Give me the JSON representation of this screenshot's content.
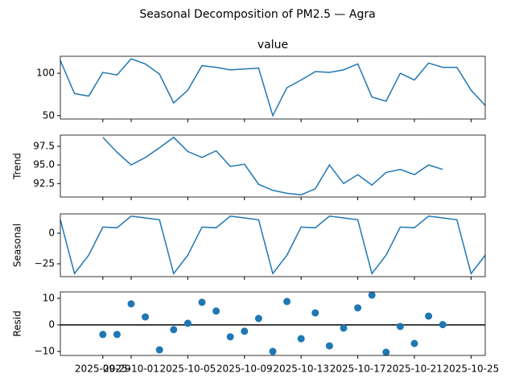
{
  "title": "Seasonal Decomposition of PM2.5 — Agra",
  "chart_data": [
    {
      "type": "line",
      "title": "value",
      "color": "#1f77b4",
      "x": [
        "2025-09-26",
        "2025-09-27",
        "2025-09-28",
        "2025-09-29",
        "2025-09-30",
        "2025-10-01",
        "2025-10-02",
        "2025-10-03",
        "2025-10-04",
        "2025-10-05",
        "2025-10-06",
        "2025-10-07",
        "2025-10-08",
        "2025-10-09",
        "2025-10-10",
        "2025-10-11",
        "2025-10-12",
        "2025-10-13",
        "2025-10-14",
        "2025-10-15",
        "2025-10-16",
        "2025-10-17",
        "2025-10-18",
        "2025-10-19",
        "2025-10-20",
        "2025-10-21",
        "2025-10-22",
        "2025-10-23",
        "2025-10-24",
        "2025-10-25",
        "2025-10-26"
      ],
      "values": [
        115,
        76,
        73,
        101,
        98,
        117,
        111,
        99,
        65,
        80,
        109,
        107,
        104,
        105,
        106,
        50,
        83,
        92,
        102,
        101,
        104,
        111,
        72,
        67,
        100,
        92,
        112,
        107,
        107,
        80,
        62
      ],
      "xlim": [
        "2025-09-26",
        "2025-10-26"
      ],
      "ylim": [
        46,
        120
      ],
      "yticks": [
        50,
        100
      ]
    },
    {
      "type": "line",
      "ylabel": "Trend",
      "color": "#1f77b4",
      "x": [
        "2025-09-26",
        "2025-09-27",
        "2025-09-28",
        "2025-09-29",
        "2025-09-30",
        "2025-10-01",
        "2025-10-02",
        "2025-10-03",
        "2025-10-04",
        "2025-10-05",
        "2025-10-06",
        "2025-10-07",
        "2025-10-08",
        "2025-10-09",
        "2025-10-10",
        "2025-10-11",
        "2025-10-12",
        "2025-10-13",
        "2025-10-14",
        "2025-10-15",
        "2025-10-16",
        "2025-10-17",
        "2025-10-18",
        "2025-10-19",
        "2025-10-20",
        "2025-10-21",
        "2025-10-22",
        "2025-10-23",
        "2025-10-24",
        "2025-10-25",
        "2025-10-26"
      ],
      "values": [
        null,
        null,
        null,
        98.7,
        96.7,
        95.0,
        96.0,
        97.3,
        98.7,
        96.8,
        96.0,
        96.9,
        94.8,
        95.1,
        92.4,
        91.6,
        91.2,
        91.0,
        91.8,
        95.0,
        92.5,
        93.7,
        92.3,
        94.0,
        94.4,
        93.7,
        95.0,
        94.4,
        null,
        null,
        null
      ],
      "xlim": [
        "2025-09-26",
        "2025-10-26"
      ],
      "ylim": [
        90.7,
        99.0
      ],
      "yticks": [
        92.5,
        {
          "value": 95,
          "label": "95.0"
        },
        97.5
      ]
    },
    {
      "type": "line",
      "ylabel": "Seasonal",
      "color": "#1f77b4",
      "x": [
        "2025-09-26",
        "2025-09-27",
        "2025-09-28",
        "2025-09-29",
        "2025-09-30",
        "2025-10-01",
        "2025-10-02",
        "2025-10-03",
        "2025-10-04",
        "2025-10-05",
        "2025-10-06",
        "2025-10-07",
        "2025-10-08",
        "2025-10-09",
        "2025-10-10",
        "2025-10-11",
        "2025-10-12",
        "2025-10-13",
        "2025-10-14",
        "2025-10-15",
        "2025-10-16",
        "2025-10-17",
        "2025-10-18",
        "2025-10-19",
        "2025-10-20",
        "2025-10-21",
        "2025-10-22",
        "2025-10-23",
        "2025-10-24",
        "2025-10-25",
        "2025-10-26"
      ],
      "values": [
        11,
        -33,
        -18,
        5,
        4.5,
        14,
        12.5,
        11,
        -33,
        -18,
        5,
        4.5,
        14,
        12.5,
        11,
        -33,
        -18,
        5,
        4.5,
        14,
        12.5,
        11,
        -33,
        -18,
        5,
        4.5,
        14,
        12.5,
        11,
        -33,
        -18
      ],
      "xlim": [
        "2025-09-26",
        "2025-10-26"
      ],
      "ylim": [
        -35.5,
        15.8
      ],
      "yticks": [
        {
          "value": -25,
          "label": "−25"
        },
        0
      ]
    },
    {
      "type": "scatter",
      "ylabel": "Resid",
      "color": "#1f77b4",
      "x": [
        "2025-09-29",
        "2025-09-30",
        "2025-10-01",
        "2025-10-02",
        "2025-10-03",
        "2025-10-04",
        "2025-10-05",
        "2025-10-06",
        "2025-10-07",
        "2025-10-08",
        "2025-10-09",
        "2025-10-10",
        "2025-10-11",
        "2025-10-12",
        "2025-10-13",
        "2025-10-14",
        "2025-10-15",
        "2025-10-16",
        "2025-10-17",
        "2025-10-18",
        "2025-10-19",
        "2025-10-20",
        "2025-10-21",
        "2025-10-22",
        "2025-10-23"
      ],
      "values": [
        -3.6,
        -3.6,
        7.9,
        3.0,
        -9.4,
        -1.8,
        0.6,
        8.5,
        5.2,
        -4.5,
        -2.4,
        2.4,
        -10,
        8.8,
        -5.2,
        4.5,
        -7.9,
        -1.2,
        6.4,
        11.2,
        -10.3,
        -0.6,
        -7.0,
        3.3,
        0.1
      ],
      "xlim": [
        "2025-09-26",
        "2025-10-26"
      ],
      "ylim": [
        -11.5,
        12.4
      ],
      "yticks": [
        {
          "value": -10,
          "label": "−10"
        },
        0,
        10
      ],
      "xticks": [
        "2025-09-29",
        "2025-10-01",
        "2025-10-05",
        "2025-10-09",
        "2025-10-13",
        "2025-10-17",
        "2025-10-21",
        "2025-10-25"
      ]
    }
  ]
}
